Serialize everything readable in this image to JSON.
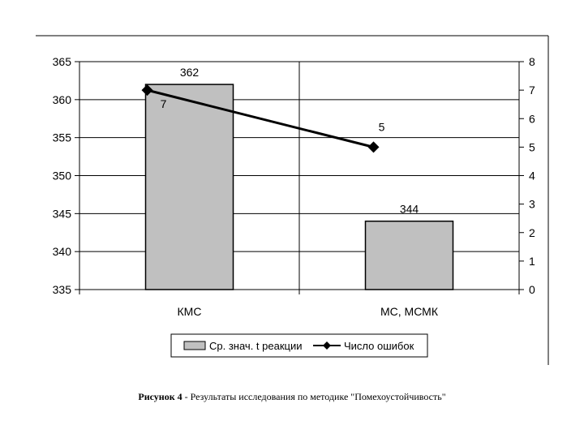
{
  "caption": {
    "bold": "Рисунок 4",
    "rest": " - Результаты исследования   по методике \"Помехоустойчивость\""
  },
  "chart_data": {
    "type": "bar",
    "categories": [
      "КМС",
      "МС, МСМК"
    ],
    "series": [
      {
        "name": "Ср. знач. t реакции",
        "type": "bar",
        "axis": "left",
        "values": [
          362,
          344
        ],
        "labels": [
          "362",
          "344"
        ],
        "color": "#c0c0c0"
      },
      {
        "name": "Число ошибок",
        "type": "line",
        "axis": "right",
        "values": [
          7,
          5
        ],
        "labels": [
          "7",
          "5"
        ],
        "color": "#000000",
        "marker": "diamond"
      }
    ],
    "y_left": {
      "min": 335,
      "max": 365,
      "step": 5,
      "ticks": [
        "335",
        "340",
        "345",
        "350",
        "355",
        "360",
        "365"
      ]
    },
    "y_right": {
      "min": 0,
      "max": 8,
      "step": 1,
      "ticks": [
        "0",
        "1",
        "2",
        "3",
        "4",
        "5",
        "6",
        "7",
        "8"
      ]
    },
    "grid": true,
    "legend_position": "bottom"
  }
}
